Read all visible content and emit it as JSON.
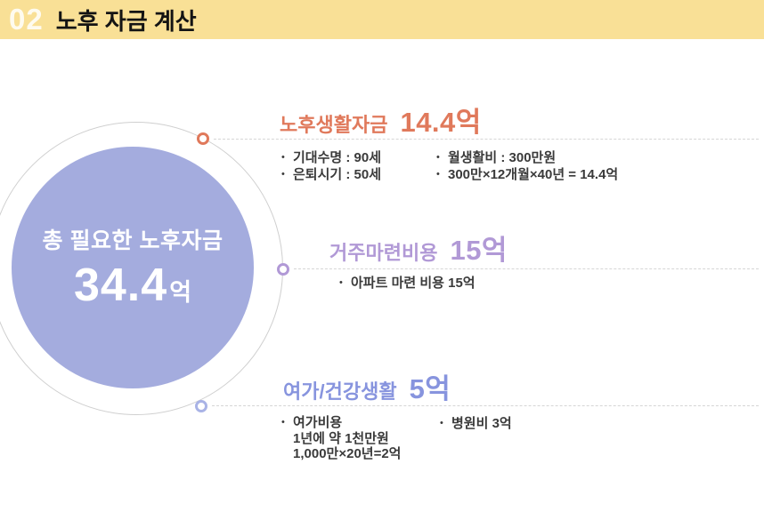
{
  "bullet_char": "•",
  "header": {
    "number": "02",
    "title": "노후 자금 계산",
    "bg_color": "#F9E096"
  },
  "center": {
    "label": "총 필요한 노후자금",
    "value": "34.4",
    "unit": "억",
    "fill_color": "#A4ACDE",
    "text_color": "#FFFFFF"
  },
  "sections": [
    {
      "title": "노후생활자금",
      "value": "14.4억",
      "accent_color": "#E0795B",
      "col1": [
        "기대수명 : 90세",
        "은퇴시기 : 50세"
      ],
      "col2": [
        "월생활비 : 300만원",
        "300만×12개월×40년 = 14.4억"
      ]
    },
    {
      "title": "거주마련비용",
      "value": "15억",
      "accent_color": "#B199D6",
      "col1": [
        "아파트 마련 비용 15억"
      ],
      "col2": []
    },
    {
      "title": "여가/건강생활",
      "value": "5억",
      "accent_color": "#8794DE",
      "col1": [
        "여가비용",
        "1년에 약 1천만원",
        "1,000만×20년=2억"
      ],
      "col2": [
        "병원비 3억"
      ]
    }
  ]
}
